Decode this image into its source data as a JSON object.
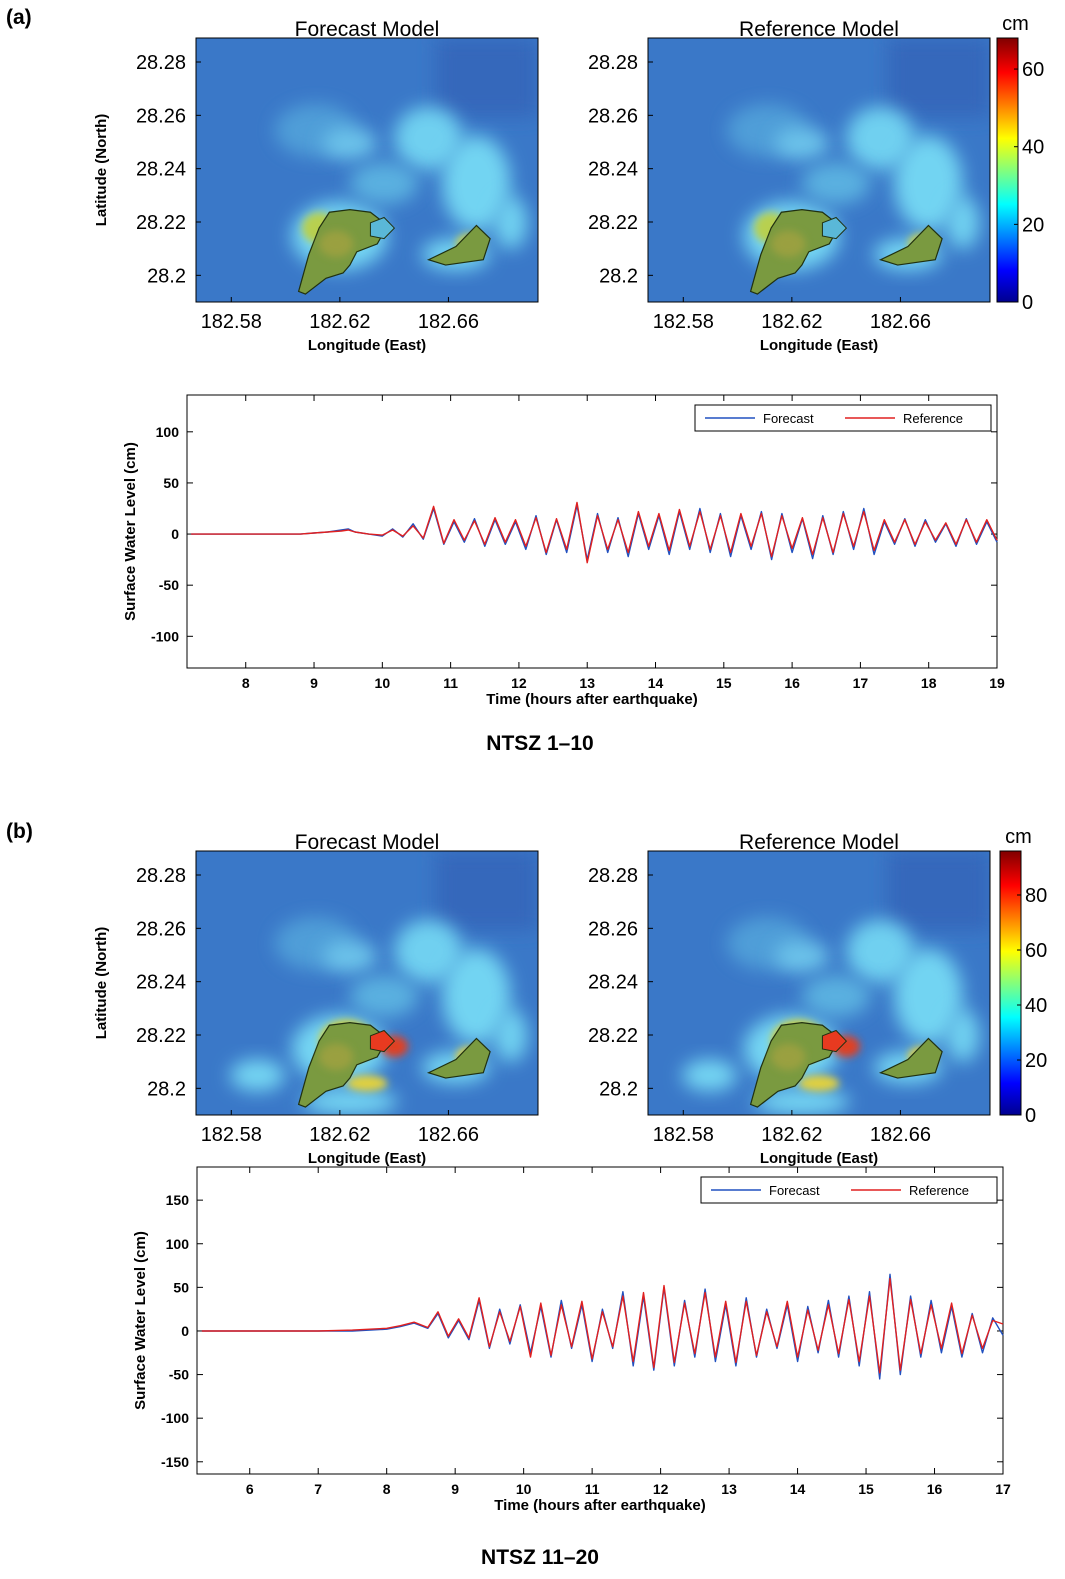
{
  "panels": [
    {
      "label": "(a)",
      "caption": "NTSZ 1–10"
    },
    {
      "label": "(b)",
      "caption": "NTSZ 11–20"
    }
  ],
  "chart_data": [
    {
      "type": "heatmap",
      "title": "Forecast Model",
      "xlabel": "Longitude (East)",
      "ylabel": "Latitude (North)",
      "xlim": [
        182.567,
        182.693
      ],
      "xticks": [
        182.58,
        182.62,
        182.66
      ],
      "ylim": [
        28.19,
        28.289
      ],
      "yticks": [
        28.2,
        28.22,
        28.24,
        28.26,
        28.28
      ]
    },
    {
      "type": "heatmap",
      "title": "Reference Model",
      "xlabel": "Longitude (East)",
      "xlim": [
        182.567,
        182.693
      ],
      "xticks": [
        182.58,
        182.62,
        182.66
      ],
      "ylim": [
        28.19,
        28.289
      ],
      "yticks": [
        28.2,
        28.22,
        28.24,
        28.26,
        28.28
      ],
      "colorbar": {
        "unit": "cm",
        "lim": [
          0,
          68
        ],
        "ticks": [
          0,
          20,
          40,
          60
        ]
      }
    },
    {
      "type": "line",
      "xlabel": "Time (hours after earthquake)",
      "ylabel": "Surface Water Level (cm)",
      "xlim": [
        7.14,
        19
      ],
      "xticks": [
        8,
        9,
        10,
        11,
        12,
        13,
        14,
        15,
        16,
        17,
        18,
        19
      ],
      "ylim": [
        -131,
        136
      ],
      "yticks": [
        -100,
        -50,
        0,
        50,
        100
      ],
      "x": [
        7.2,
        8.0,
        8.8,
        9.0,
        9.2,
        9.4,
        9.5,
        9.6,
        9.8,
        10.0,
        10.15,
        10.3,
        10.45,
        10.6,
        10.75,
        10.9,
        11.05,
        11.2,
        11.35,
        11.5,
        11.65,
        11.8,
        11.95,
        12.1,
        12.25,
        12.4,
        12.55,
        12.7,
        12.85,
        13.0,
        13.15,
        13.3,
        13.45,
        13.6,
        13.75,
        13.9,
        14.05,
        14.2,
        14.35,
        14.5,
        14.65,
        14.8,
        14.95,
        15.1,
        15.25,
        15.4,
        15.55,
        15.7,
        15.85,
        16.0,
        16.15,
        16.3,
        16.45,
        16.6,
        16.75,
        16.9,
        17.05,
        17.2,
        17.35,
        17.5,
        17.65,
        17.8,
        17.95,
        18.1,
        18.25,
        18.4,
        18.55,
        18.7,
        18.85,
        19.0
      ],
      "series": [
        {
          "name": "Forecast",
          "color": "#2050c0",
          "values": [
            0,
            0,
            0,
            1,
            2,
            4,
            5,
            2,
            0,
            -2,
            5,
            -3,
            10,
            -5,
            25,
            -10,
            12,
            -8,
            15,
            -12,
            14,
            -10,
            12,
            -15,
            18,
            -20,
            14,
            -18,
            28,
            -25,
            20,
            -18,
            16,
            -22,
            20,
            -15,
            18,
            -20,
            22,
            -15,
            25,
            -18,
            20,
            -22,
            18,
            -15,
            22,
            -25,
            20,
            -18,
            15,
            -24,
            18,
            -20,
            22,
            -15,
            25,
            -20,
            12,
            -10,
            15,
            -12,
            14,
            -8,
            10,
            -12,
            15,
            -10,
            12,
            -8
          ]
        },
        {
          "name": "Reference",
          "color": "#e02020",
          "values": [
            0,
            0,
            0,
            1,
            2,
            3,
            4,
            2,
            0,
            -1,
            4,
            -2,
            8,
            -4,
            27,
            -9,
            14,
            -6,
            13,
            -10,
            16,
            -8,
            14,
            -12,
            16,
            -18,
            15,
            -15,
            31,
            -28,
            18,
            -15,
            14,
            -18,
            22,
            -12,
            20,
            -16,
            24,
            -12,
            22,
            -15,
            18,
            -18,
            20,
            -12,
            20,
            -22,
            18,
            -14,
            16,
            -20,
            16,
            -18,
            20,
            -12,
            22,
            -16,
            14,
            -8,
            14,
            -10,
            12,
            -6,
            11,
            -10,
            14,
            -8,
            14,
            -6
          ]
        }
      ]
    },
    {
      "type": "heatmap",
      "title": "Forecast Model",
      "xlabel": "Longitude (East)",
      "ylabel": "Latitude (North)",
      "xlim": [
        182.567,
        182.693
      ],
      "xticks": [
        182.58,
        182.62,
        182.66
      ],
      "ylim": [
        28.19,
        28.289
      ],
      "yticks": [
        28.2,
        28.22,
        28.24,
        28.26,
        28.28
      ]
    },
    {
      "type": "heatmap",
      "title": "Reference Model",
      "xlabel": "Longitude (East)",
      "xlim": [
        182.567,
        182.693
      ],
      "xticks": [
        182.58,
        182.62,
        182.66
      ],
      "ylim": [
        28.19,
        28.289
      ],
      "yticks": [
        28.2,
        28.22,
        28.24,
        28.26,
        28.28
      ],
      "colorbar": {
        "unit": "cm",
        "lim": [
          0,
          96
        ],
        "ticks": [
          0,
          20,
          40,
          60,
          80
        ]
      }
    },
    {
      "type": "line",
      "xlabel": "Time (hours after earthquake)",
      "ylabel": "Surface Water Level (cm)",
      "xlim": [
        5.23,
        17
      ],
      "xticks": [
        6,
        7,
        8,
        9,
        10,
        11,
        12,
        13,
        14,
        15,
        16,
        17
      ],
      "ylim": [
        -164,
        188
      ],
      "yticks": [
        -150,
        -100,
        -50,
        0,
        50,
        100,
        150
      ],
      "x": [
        5.3,
        6.0,
        7.0,
        7.5,
        8.0,
        8.2,
        8.4,
        8.6,
        8.75,
        8.9,
        9.05,
        9.2,
        9.35,
        9.5,
        9.65,
        9.8,
        9.95,
        10.1,
        10.25,
        10.4,
        10.55,
        10.7,
        10.85,
        11.0,
        11.15,
        11.3,
        11.45,
        11.6,
        11.75,
        11.9,
        12.05,
        12.2,
        12.35,
        12.5,
        12.65,
        12.8,
        12.95,
        13.1,
        13.25,
        13.4,
        13.55,
        13.7,
        13.85,
        14.0,
        14.15,
        14.3,
        14.45,
        14.6,
        14.75,
        14.9,
        15.05,
        15.2,
        15.35,
        15.5,
        15.65,
        15.8,
        15.95,
        16.1,
        16.25,
        16.4,
        16.55,
        16.7,
        16.85,
        17.0
      ],
      "series": [
        {
          "name": "Forecast",
          "color": "#2050c0",
          "values": [
            0,
            0,
            0,
            0,
            2,
            5,
            9,
            3,
            20,
            -8,
            12,
            -10,
            35,
            -20,
            25,
            -15,
            30,
            -25,
            28,
            -30,
            35,
            -20,
            30,
            -35,
            25,
            -20,
            45,
            -40,
            40,
            -45,
            50,
            -40,
            35,
            -30,
            48,
            -35,
            30,
            -40,
            38,
            -30,
            25,
            -20,
            30,
            -35,
            28,
            -25,
            35,
            -30,
            40,
            -40,
            45,
            -55,
            65,
            -50,
            40,
            -30,
            35,
            -25,
            28,
            -30,
            20,
            -25,
            15,
            -5
          ]
        },
        {
          "name": "Reference",
          "color": "#e02020",
          "values": [
            0,
            0,
            0,
            1,
            3,
            6,
            10,
            4,
            22,
            -6,
            14,
            -8,
            38,
            -18,
            22,
            -12,
            28,
            -30,
            32,
            -28,
            30,
            -18,
            34,
            -32,
            22,
            -18,
            40,
            -35,
            44,
            -42,
            52,
            -36,
            32,
            -26,
            44,
            -30,
            34,
            -36,
            34,
            -28,
            22,
            -18,
            34,
            -30,
            24,
            -22,
            30,
            -26,
            36,
            -35,
            40,
            -48,
            60,
            -45,
            36,
            -26,
            30,
            -20,
            32,
            -26,
            18,
            -20,
            12,
            8
          ]
        }
      ]
    }
  ]
}
